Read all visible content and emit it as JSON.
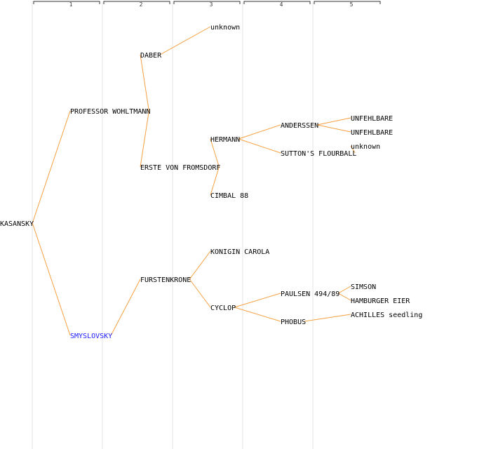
{
  "generations": [
    "1",
    "2",
    "3",
    "4",
    "5"
  ],
  "colors": {
    "line": "#f5a040",
    "text": "#000000",
    "highlight": "#1a1aff",
    "column_line": "#e6e6e6",
    "bracket": "#333333"
  },
  "nodes": [
    {
      "id": "kasansky",
      "label": "KASANSKY",
      "gen": 1,
      "parent": null
    },
    {
      "id": "professor-wohltmann",
      "label": "PROFESSOR WOHLTMANN",
      "gen": 2,
      "parent": "kasansky"
    },
    {
      "id": "smyslovsky",
      "label": "SMYSLOVSKY",
      "gen": 2,
      "parent": "kasansky",
      "highlight": true
    },
    {
      "id": "daber",
      "label": "DABER",
      "gen": 3,
      "parent": "professor-wohltmann"
    },
    {
      "id": "erste-von-fromsdorf",
      "label": "ERSTE VON FROMSDORF",
      "gen": 3,
      "parent": "professor-wohltmann"
    },
    {
      "id": "furstenkrone",
      "label": "FURSTENKRONE",
      "gen": 3,
      "parent": "smyslovsky"
    },
    {
      "id": "unknown-1",
      "label": "unknown",
      "gen": 4,
      "parent": "daber"
    },
    {
      "id": "hermann",
      "label": "HERMANN",
      "gen": 4,
      "parent": "erste-von-fromsdorf"
    },
    {
      "id": "cimbal-88",
      "label": "CIMBAL 88",
      "gen": 4,
      "parent": "erste-von-fromsdorf"
    },
    {
      "id": "konigin-carola",
      "label": "KONIGIN CAROLA",
      "gen": 4,
      "parent": "furstenkrone"
    },
    {
      "id": "cyclop",
      "label": "CYCLOP",
      "gen": 4,
      "parent": "furstenkrone"
    },
    {
      "id": "anderssen",
      "label": "ANDERSSEN",
      "gen": 5,
      "parent": "hermann"
    },
    {
      "id": "suttons-flourball",
      "label": "SUTTON'S FLOURBALL",
      "gen": 5,
      "parent": "hermann"
    },
    {
      "id": "paulsen-494-89",
      "label": "PAULSEN 494/89",
      "gen": 5,
      "parent": "cyclop"
    },
    {
      "id": "phobus",
      "label": "PHOBUS",
      "gen": 5,
      "parent": "cyclop"
    },
    {
      "id": "unfehlbare-1",
      "label": "UNFEHLBARE",
      "gen": 6,
      "parent": "anderssen"
    },
    {
      "id": "unfehlbare-2",
      "label": "UNFEHLBARE",
      "gen": 6,
      "parent": "anderssen"
    },
    {
      "id": "unknown-2",
      "label": "unknown",
      "gen": 6,
      "parent": "suttons-flourball"
    },
    {
      "id": "simson",
      "label": "SIMSON",
      "gen": 6,
      "parent": "paulsen-494-89"
    },
    {
      "id": "hamburger-eier",
      "label": "HAMBURGER EIER",
      "gen": 6,
      "parent": "paulsen-494-89"
    },
    {
      "id": "achilles-seedling",
      "label": "ACHILLES seedling",
      "gen": 6,
      "parent": "phobus"
    }
  ]
}
